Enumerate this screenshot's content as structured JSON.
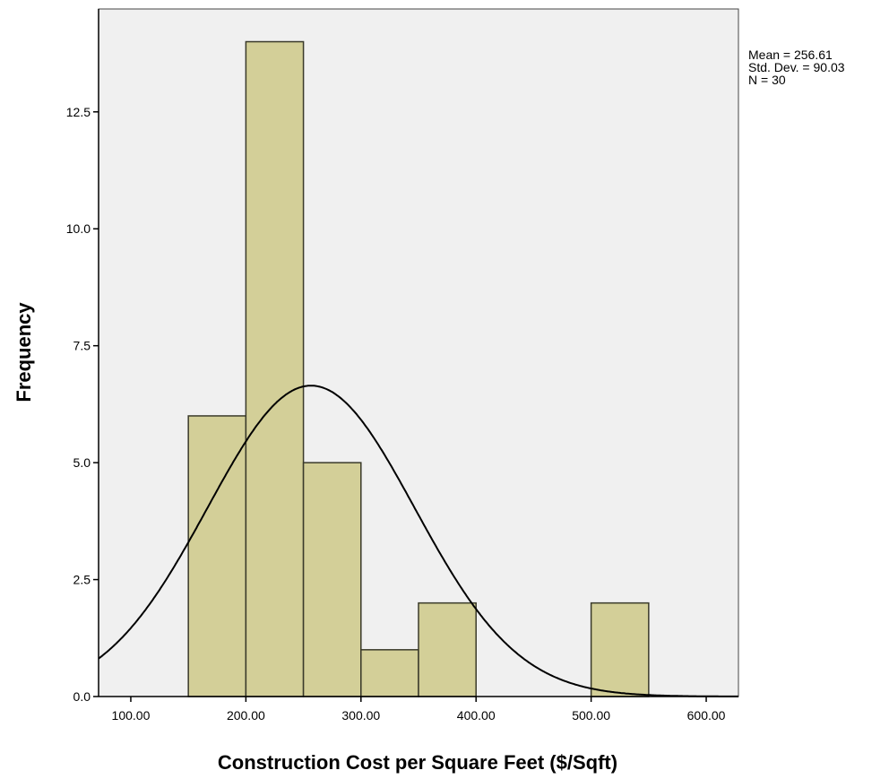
{
  "chart_data": {
    "type": "histogram",
    "xlabel": "Construction Cost per Square Feet ($/Sqft)",
    "ylabel": "Frequency",
    "x_ticks": [
      "100.00",
      "200.00",
      "300.00",
      "400.00",
      "500.00",
      "600.00"
    ],
    "y_ticks": [
      "0.0",
      "2.5",
      "5.0",
      "7.5",
      "10.0",
      "12.5"
    ],
    "xlim": [
      72,
      628
    ],
    "ylim": [
      0,
      14.7
    ],
    "bins": [
      {
        "start": 150,
        "end": 200,
        "count": 6
      },
      {
        "start": 200,
        "end": 250,
        "count": 14
      },
      {
        "start": 250,
        "end": 300,
        "count": 5
      },
      {
        "start": 300,
        "end": 350,
        "count": 1
      },
      {
        "start": 350,
        "end": 400,
        "count": 2
      },
      {
        "start": 500,
        "end": 550,
        "count": 2
      }
    ],
    "normal_curve": {
      "mean": 256.61,
      "std": 90.03,
      "n": 30,
      "bin_width": 50
    },
    "stats": [
      "Mean = 256.61",
      "Std. Dev. = 90.03",
      "N = 30"
    ],
    "colors": {
      "bar_fill": "#d3cf98",
      "bar_stroke": "#3a3a2a",
      "plot_bg": "#f0f0f0",
      "curve": "#000000"
    }
  }
}
